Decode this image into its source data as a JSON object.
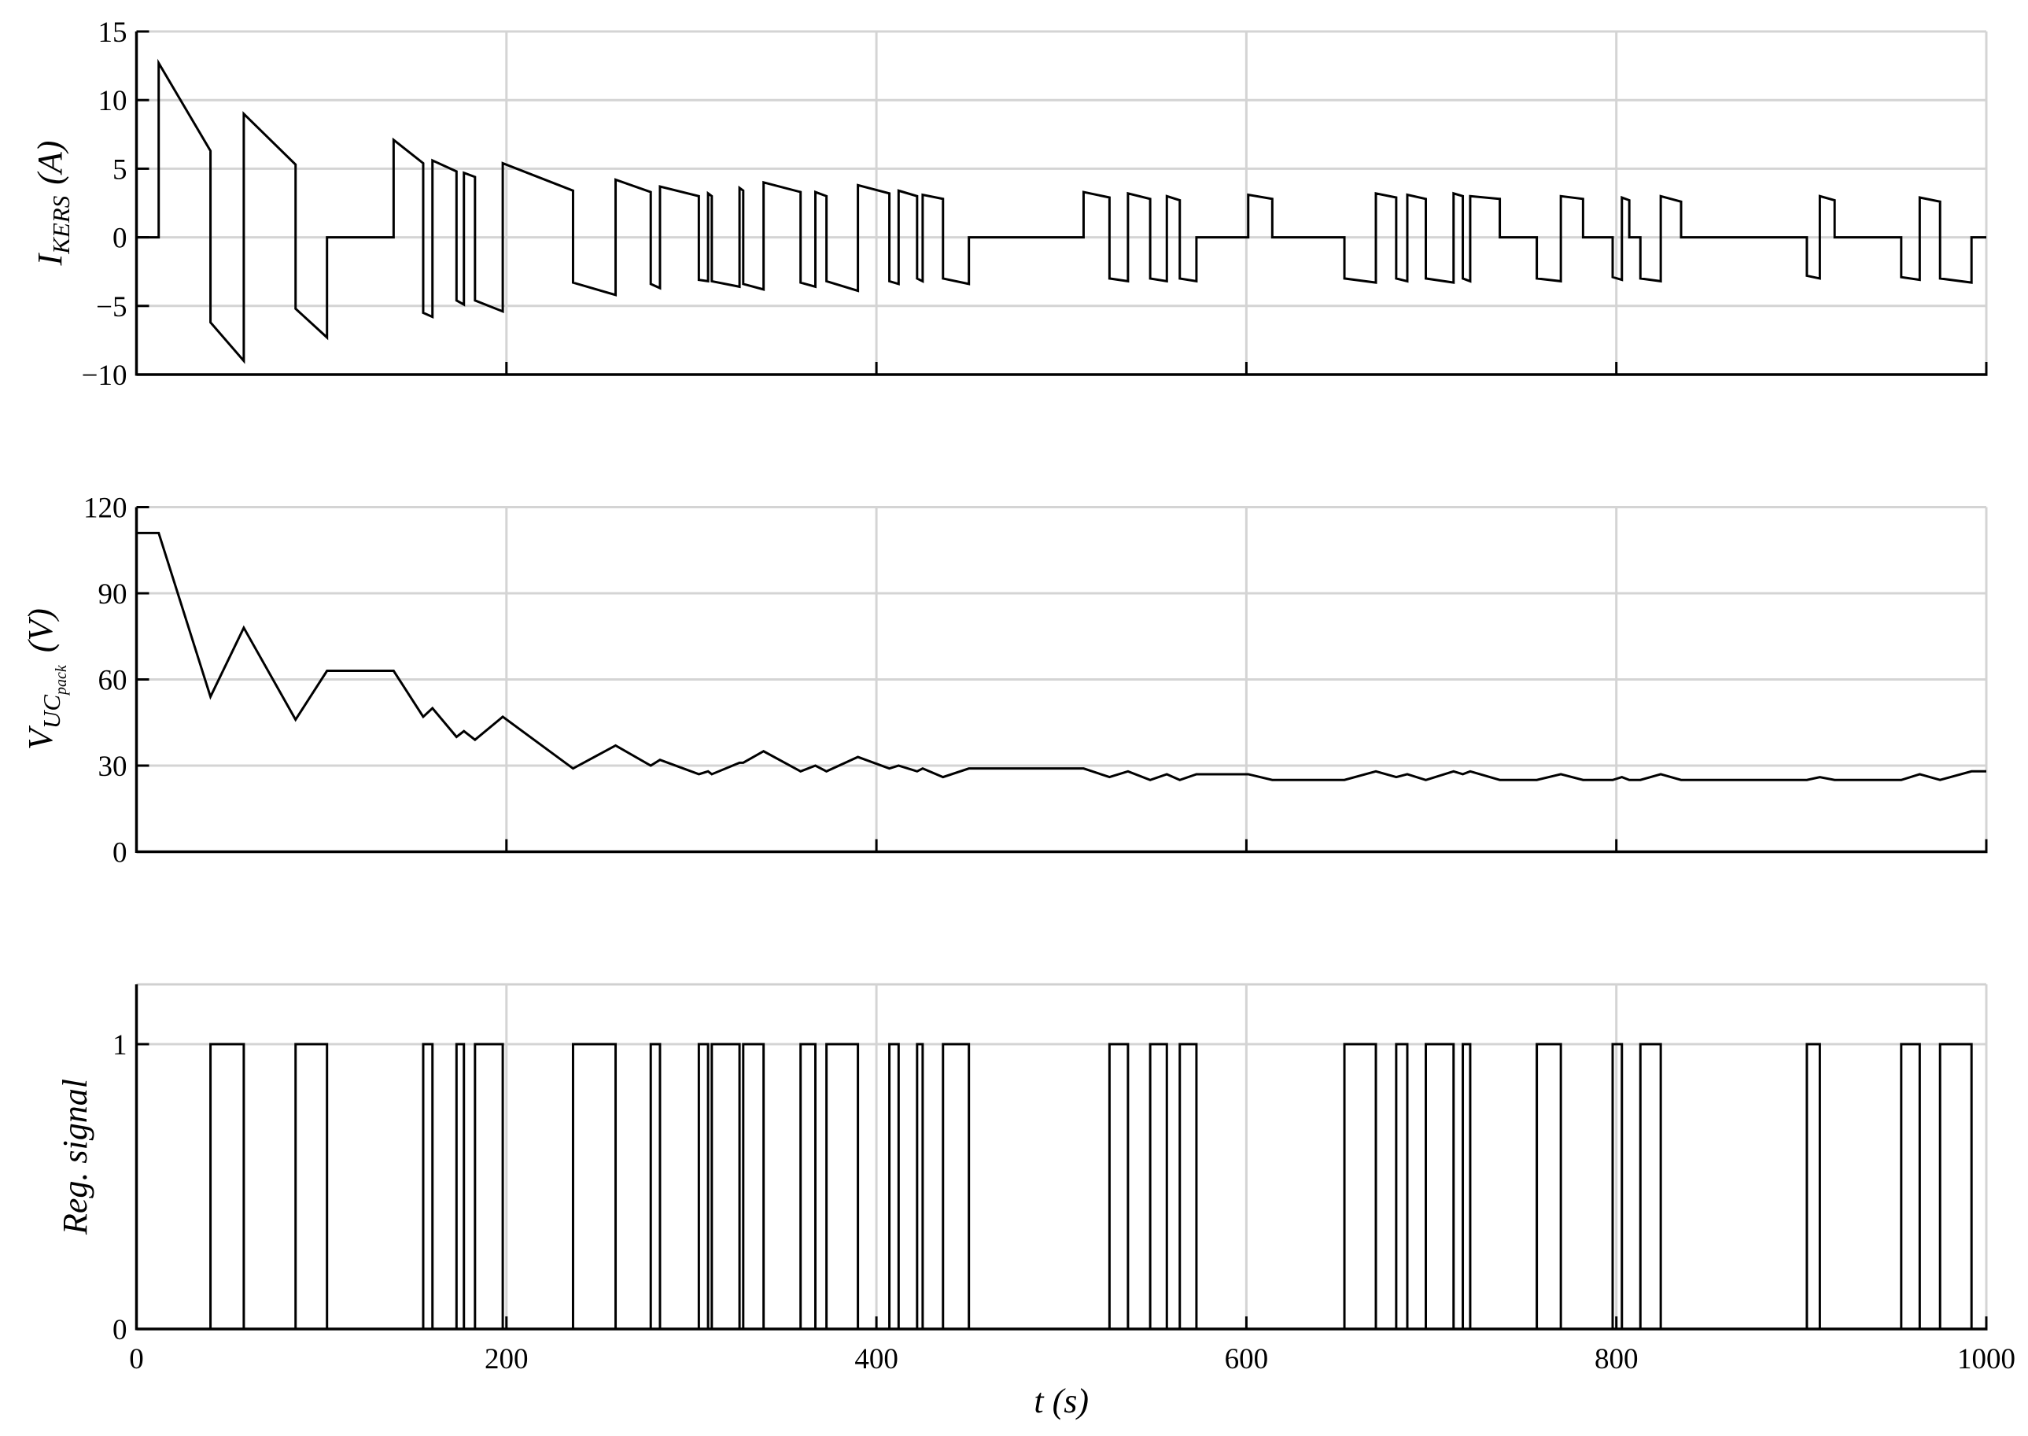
{
  "chart_data": [
    {
      "type": "line",
      "color": "#000000",
      "grid": true,
      "show_xtick_labels": false,
      "ylabel": {
        "base": "I",
        "sub": "KERS",
        "unit": "(A)"
      },
      "xlim": [
        0,
        1000
      ],
      "xticks": [
        0,
        200,
        400,
        600,
        800,
        1000
      ],
      "ylim": [
        -10,
        15
      ],
      "yticks": [
        {
          "value": -10,
          "label": "−10"
        },
        {
          "value": -5,
          "label": "−5"
        },
        0,
        5,
        10,
        15
      ],
      "x": [
        0,
        12,
        12,
        40,
        40,
        58,
        58,
        86,
        86,
        103,
        103,
        139,
        139,
        155,
        155,
        160,
        160,
        173,
        173,
        177,
        177,
        183,
        183,
        198,
        198,
        236,
        236,
        259,
        259,
        278,
        278,
        283,
        283,
        304,
        304,
        309,
        309,
        311,
        311,
        326,
        326,
        328,
        328,
        339,
        339,
        359,
        359,
        367,
        367,
        373,
        373,
        390,
        390,
        407,
        407,
        412,
        412,
        422,
        422,
        425,
        425,
        436,
        436,
        450,
        450,
        512,
        512,
        526,
        526,
        536,
        536,
        548,
        548,
        557,
        557,
        564,
        564,
        573,
        573,
        601,
        601,
        614,
        614,
        653,
        653,
        670,
        670,
        681,
        681,
        687,
        687,
        697,
        697,
        712,
        712,
        717,
        717,
        721,
        721,
        737,
        737,
        757,
        757,
        770,
        770,
        782,
        782,
        798,
        798,
        803,
        803,
        807,
        807,
        813,
        813,
        824,
        824,
        835,
        835,
        903,
        903,
        910,
        910,
        918,
        918,
        954,
        954,
        964,
        964,
        975,
        975,
        992,
        992,
        1000
      ],
      "values": [
        0,
        0,
        12.7,
        6.3,
        -6.2,
        -9,
        9,
        5.3,
        -5.2,
        -7.3,
        0,
        0,
        7.1,
        5.4,
        -5.5,
        -5.8,
        5.6,
        4.8,
        -4.6,
        -4.9,
        4.7,
        4.4,
        -4.6,
        -5.4,
        5.4,
        3.4,
        -3.3,
        -4.2,
        4.2,
        3.3,
        -3.4,
        -3.7,
        3.7,
        3,
        -3.1,
        -3.2,
        3.2,
        3,
        -3.2,
        -3.6,
        3.6,
        3.4,
        -3.4,
        -3.8,
        4,
        3.3,
        -3.3,
        -3.6,
        3.3,
        3,
        -3.2,
        -3.9,
        3.8,
        3.2,
        -3.2,
        -3.4,
        3.4,
        3,
        -3,
        -3.2,
        3.1,
        2.8,
        -3,
        -3.4,
        0,
        0,
        3.3,
        2.9,
        -3,
        -3.2,
        3.2,
        2.8,
        -3,
        -3.2,
        3,
        2.7,
        -3,
        -3.2,
        0,
        0,
        3.1,
        2.8,
        0,
        0,
        -3,
        -3.3,
        3.2,
        2.9,
        -3,
        -3.2,
        3.1,
        2.8,
        -3,
        -3.3,
        3.2,
        3,
        -3,
        -3.2,
        3,
        2.8,
        0,
        0,
        -3,
        -3.2,
        3,
        2.8,
        0,
        0,
        -2.9,
        -3.1,
        2.9,
        2.7,
        0,
        0,
        -3,
        -3.2,
        3,
        2.6,
        0,
        0,
        -2.8,
        -3,
        3,
        2.7,
        0,
        0,
        -2.9,
        -3.1,
        2.9,
        2.6,
        -3,
        -3.3,
        0,
        0
      ]
    },
    {
      "type": "line",
      "color": "#000000",
      "grid": true,
      "show_xtick_labels": false,
      "ylabel": {
        "base": "V",
        "sub": "UC",
        "subsub": "pack",
        "unit": "(V)"
      },
      "xlim": [
        0,
        1000
      ],
      "xticks": [
        0,
        200,
        400,
        600,
        800,
        1000
      ],
      "ylim": [
        0,
        120
      ],
      "yticks": [
        0,
        30,
        60,
        90,
        120
      ],
      "x": [
        0,
        12,
        40,
        58,
        86,
        103,
        139,
        155,
        160,
        173,
        177,
        183,
        198,
        236,
        259,
        278,
        283,
        304,
        309,
        311,
        326,
        328,
        339,
        359,
        367,
        373,
        390,
        407,
        412,
        422,
        425,
        436,
        450,
        512,
        526,
        536,
        548,
        557,
        564,
        573,
        601,
        614,
        653,
        670,
        681,
        687,
        697,
        712,
        717,
        721,
        737,
        757,
        770,
        782,
        798,
        803,
        807,
        813,
        824,
        835,
        903,
        910,
        918,
        954,
        964,
        975,
        992,
        1000
      ],
      "values": [
        111,
        111,
        54,
        78,
        46,
        63,
        63,
        47,
        50,
        40,
        42,
        39,
        47,
        29,
        37,
        30,
        32,
        27,
        28,
        27,
        31,
        31,
        35,
        28,
        30,
        28,
        33,
        29,
        30,
        28,
        29,
        26,
        29,
        29,
        26,
        28,
        25,
        27,
        25,
        27,
        27,
        25,
        25,
        28,
        26,
        27,
        25,
        28,
        27,
        28,
        25,
        25,
        27,
        25,
        25,
        26,
        25,
        25,
        27,
        25,
        25,
        26,
        25,
        25,
        27,
        25,
        28,
        28
      ]
    },
    {
      "type": "line",
      "color": "#000000",
      "grid": true,
      "show_xtick_labels": true,
      "ylabel": {
        "base": "Reg. signal"
      },
      "xlabel": "t (s)",
      "xlim": [
        0,
        1000
      ],
      "xticks": [
        0,
        200,
        400,
        600,
        800,
        1000
      ],
      "ylim": [
        0,
        1.21
      ],
      "yticks": [
        0,
        1
      ],
      "x": [
        0,
        40,
        40,
        58,
        58,
        86,
        86,
        103,
        103,
        155,
        155,
        160,
        160,
        173,
        173,
        177,
        177,
        183,
        183,
        198,
        198,
        236,
        236,
        259,
        259,
        278,
        278,
        283,
        283,
        304,
        304,
        309,
        309,
        311,
        311,
        326,
        326,
        328,
        328,
        339,
        339,
        359,
        359,
        367,
        367,
        373,
        373,
        390,
        390,
        407,
        407,
        412,
        412,
        422,
        422,
        425,
        425,
        436,
        436,
        450,
        450,
        526,
        526,
        536,
        536,
        548,
        548,
        557,
        557,
        564,
        564,
        573,
        573,
        653,
        653,
        670,
        670,
        681,
        681,
        687,
        687,
        697,
        697,
        712,
        712,
        717,
        717,
        721,
        721,
        757,
        757,
        770,
        770,
        798,
        798,
        803,
        803,
        813,
        813,
        824,
        824,
        903,
        903,
        910,
        910,
        954,
        954,
        964,
        964,
        975,
        975,
        992,
        992,
        1000
      ],
      "values": [
        0,
        0,
        1,
        1,
        0,
        0,
        1,
        1,
        0,
        0,
        1,
        1,
        0,
        0,
        1,
        1,
        0,
        0,
        1,
        1,
        0,
        0,
        1,
        1,
        0,
        0,
        1,
        1,
        0,
        0,
        1,
        1,
        0,
        0,
        1,
        1,
        0,
        0,
        1,
        1,
        0,
        0,
        1,
        1,
        0,
        0,
        1,
        1,
        0,
        0,
        1,
        1,
        0,
        0,
        1,
        1,
        0,
        0,
        1,
        1,
        0,
        0,
        1,
        1,
        0,
        0,
        1,
        1,
        0,
        0,
        1,
        1,
        0,
        0,
        1,
        1,
        0,
        0,
        1,
        1,
        0,
        0,
        1,
        1,
        0,
        0,
        1,
        1,
        0,
        0,
        1,
        1,
        0,
        0,
        1,
        1,
        0,
        0,
        1,
        1,
        0,
        0,
        1,
        1,
        0,
        0,
        1,
        1,
        0,
        0,
        1,
        1,
        0,
        0
      ]
    }
  ]
}
